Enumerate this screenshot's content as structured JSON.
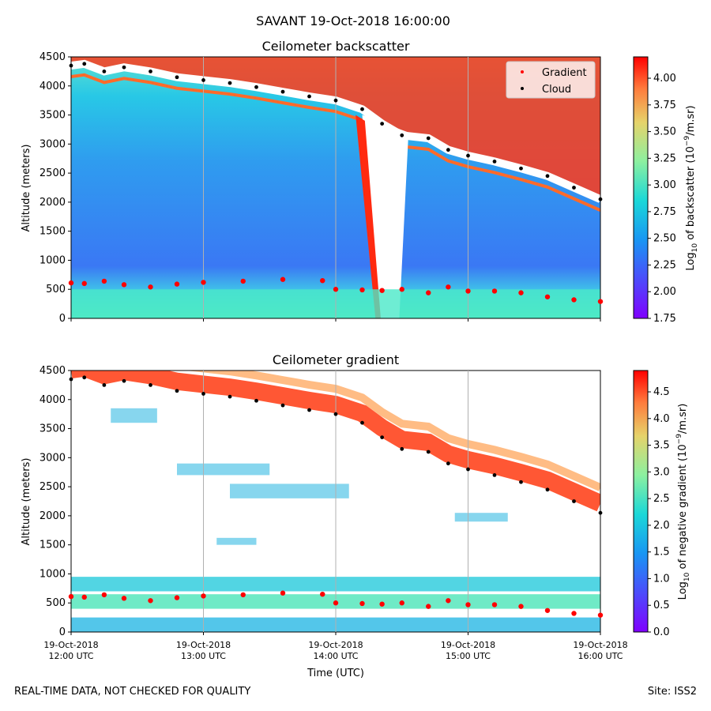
{
  "figure_title": "SAVANT 19-Oct-2018 16:00:00",
  "footer_left": "REAL-TIME DATA, NOT CHECKED FOR QUALITY",
  "footer_right": "Site: ISS2",
  "chart_data": [
    {
      "type": "heatmap",
      "title": "Ceilometer backscatter",
      "xlabel": "",
      "ylabel": "Altitude (meters)",
      "xlim_hours_utc": [
        12,
        16
      ],
      "ylim": [
        0,
        4500
      ],
      "y_ticks": [
        0,
        500,
        1000,
        1500,
        2000,
        2500,
        3000,
        3500,
        4000,
        4500
      ],
      "colorbar": {
        "label": "Log10 of backscatter (10^-9/m.sr)",
        "range": [
          1.75,
          4.2
        ],
        "ticks": [
          "1.75",
          "2.00",
          "2.25",
          "2.50",
          "2.75",
          "3.00",
          "3.25",
          "3.50",
          "3.75",
          "4.00"
        ]
      },
      "legend": {
        "position": "top-right",
        "entries": [
          "Gradient",
          "Cloud"
        ]
      },
      "series": [
        {
          "name": "Gradient",
          "color": "#ff0000",
          "x": [
            12.0,
            12.1,
            12.25,
            12.4,
            12.6,
            12.8,
            13.0,
            13.3,
            13.6,
            13.9,
            14.0,
            14.2,
            14.35,
            14.5,
            14.7,
            14.85,
            15.0,
            15.2,
            15.4,
            15.6,
            15.8,
            16.0
          ],
          "y": [
            610,
            600,
            640,
            580,
            540,
            590,
            620,
            640,
            670,
            650,
            500,
            490,
            480,
            500,
            440,
            540,
            470,
            470,
            440,
            370,
            320,
            290
          ]
        },
        {
          "name": "Cloud",
          "color": "#000000",
          "x": [
            12.0,
            12.1,
            12.25,
            12.4,
            12.6,
            12.8,
            13.0,
            13.2,
            13.4,
            13.6,
            13.8,
            14.0,
            14.2,
            14.35,
            14.5,
            14.7,
            14.85,
            15.0,
            15.2,
            15.4,
            15.6,
            15.8,
            16.0
          ],
          "y": [
            4350,
            4380,
            4250,
            4320,
            4250,
            4150,
            4100,
            4050,
            3980,
            3900,
            3820,
            3750,
            3600,
            3350,
            3150,
            3100,
            2900,
            2800,
            2700,
            2580,
            2450,
            2250,
            2050
          ]
        }
      ]
    },
    {
      "type": "heatmap",
      "title": "Ceilometer gradient",
      "xlabel": "Time (UTC)",
      "ylabel": "Altitude (meters)",
      "xlim_hours_utc": [
        12,
        16
      ],
      "ylim": [
        0,
        4500
      ],
      "y_ticks": [
        0,
        500,
        1000,
        1500,
        2000,
        2500,
        3000,
        3500,
        4000,
        4500
      ],
      "x_ticks": [
        {
          "value": 12,
          "line1": "19-Oct-2018",
          "line2": "12:00 UTC"
        },
        {
          "value": 13,
          "line1": "19-Oct-2018",
          "line2": "13:00 UTC"
        },
        {
          "value": 14,
          "line1": "19-Oct-2018",
          "line2": "14:00 UTC"
        },
        {
          "value": 15,
          "line1": "19-Oct-2018",
          "line2": "15:00 UTC"
        },
        {
          "value": 16,
          "line1": "19-Oct-2018",
          "line2": "16:00 UTC"
        }
      ],
      "colorbar": {
        "label": "Log10 of negative gradient (10^-9/m.sr)",
        "range": [
          0.0,
          4.9
        ],
        "ticks": [
          "0.0",
          "0.5",
          "1.0",
          "1.5",
          "2.0",
          "2.5",
          "3.0",
          "3.5",
          "4.0",
          "4.5"
        ]
      },
      "series": [
        {
          "name": "Gradient",
          "color": "#ff0000",
          "x": [
            12.0,
            12.1,
            12.25,
            12.4,
            12.6,
            12.8,
            13.0,
            13.3,
            13.6,
            13.9,
            14.0,
            14.2,
            14.35,
            14.5,
            14.7,
            14.85,
            15.0,
            15.2,
            15.4,
            15.6,
            15.8,
            16.0
          ],
          "y": [
            610,
            600,
            640,
            580,
            540,
            590,
            620,
            640,
            670,
            650,
            500,
            490,
            480,
            500,
            440,
            540,
            470,
            470,
            440,
            370,
            320,
            290
          ]
        },
        {
          "name": "Cloud",
          "color": "#000000",
          "x": [
            12.0,
            12.1,
            12.25,
            12.4,
            12.6,
            12.8,
            13.0,
            13.2,
            13.4,
            13.6,
            13.8,
            14.0,
            14.2,
            14.35,
            14.5,
            14.7,
            14.85,
            15.0,
            15.2,
            15.4,
            15.6,
            15.8,
            16.0
          ],
          "y": [
            4350,
            4380,
            4250,
            4320,
            4250,
            4150,
            4100,
            4050,
            3980,
            3900,
            3820,
            3750,
            3600,
            3350,
            3150,
            3100,
            2900,
            2800,
            2700,
            2580,
            2450,
            2250,
            2050
          ]
        }
      ]
    }
  ]
}
